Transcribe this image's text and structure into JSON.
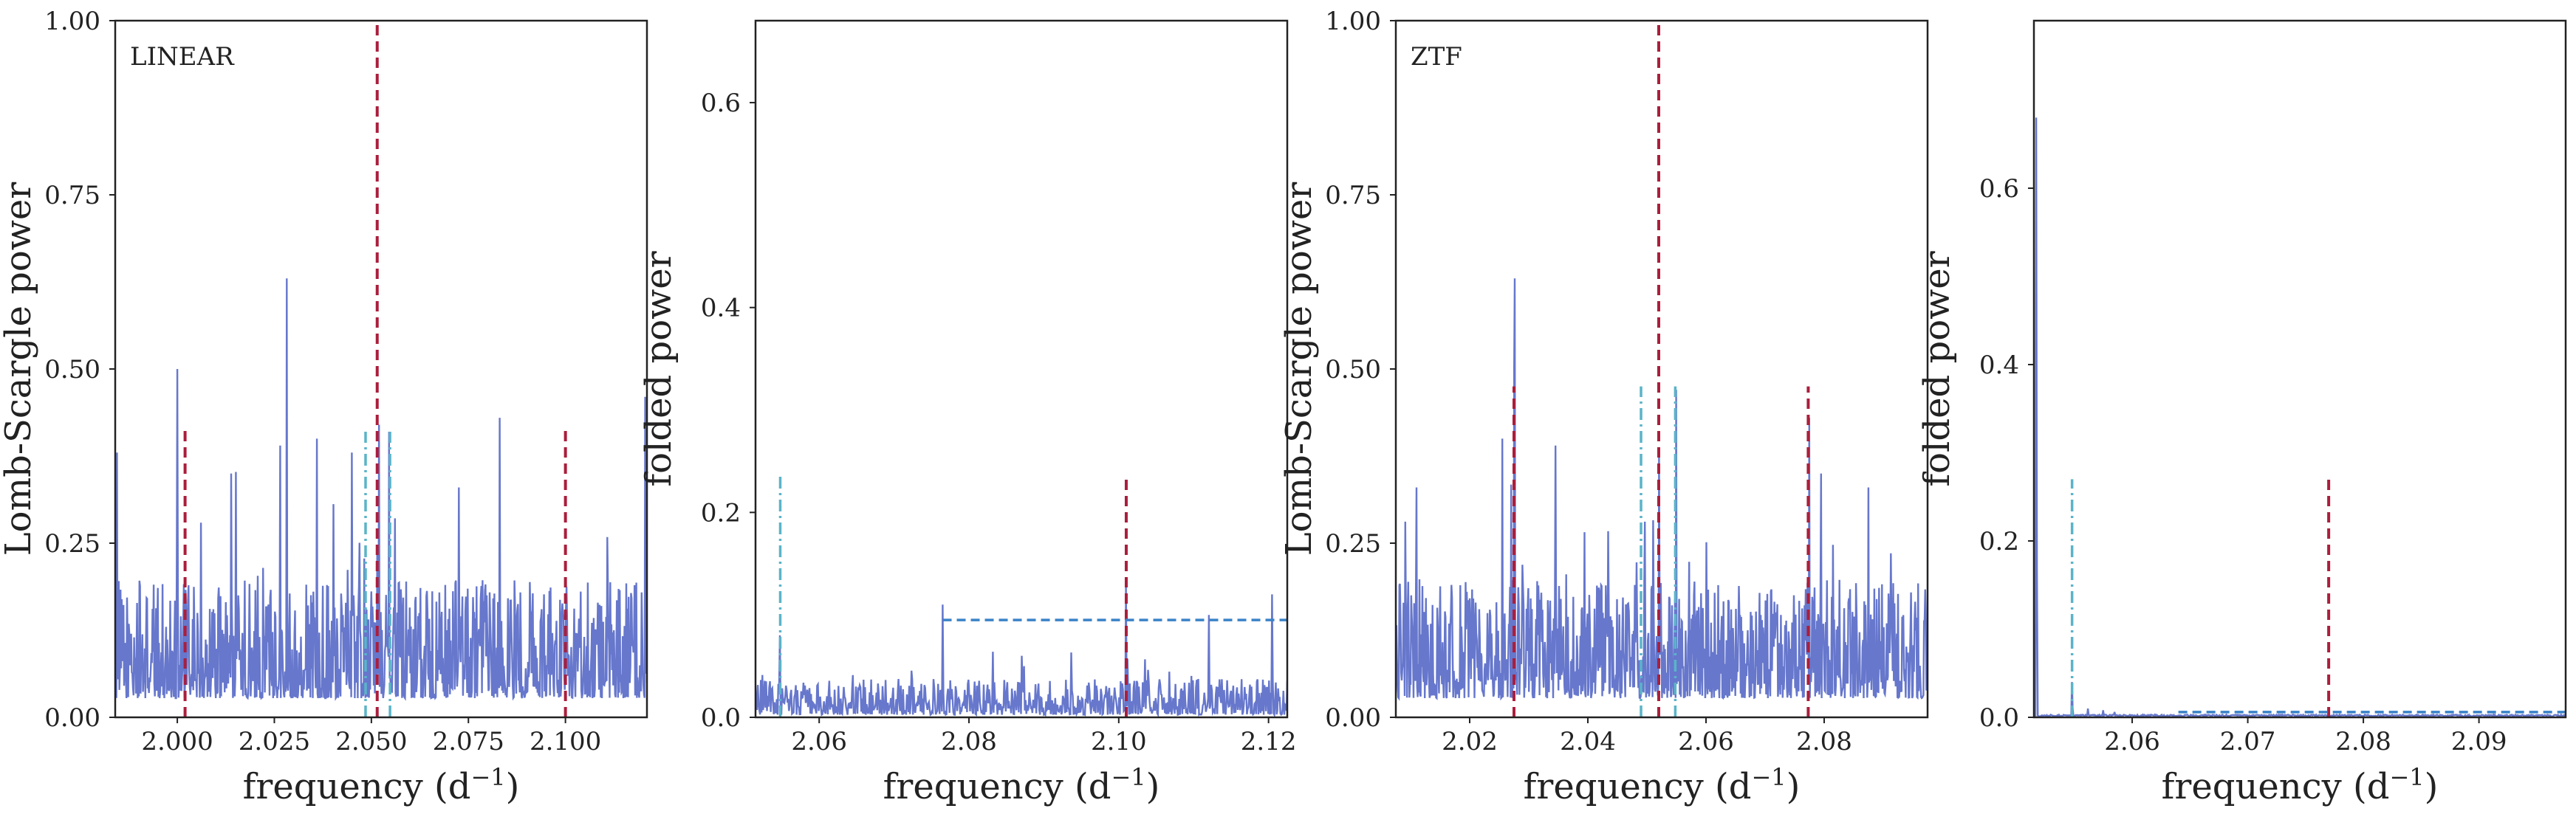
{
  "colors": {
    "periodogram": "#6677cc",
    "true_frequency": "#aa1e3c",
    "aliases": "#5ab4c8",
    "threshold": "#3a82c8",
    "frame": "#222222"
  },
  "chart_data": [
    {
      "type": "line",
      "panel_label": "LINEAR",
      "xlabel": "frequency (d$^{-1}$)",
      "xlabel_text": "frequency (d",
      "xlabel_sup": "−1",
      "xlabel_close": ")",
      "ylabel": "Lomb-Scargle power",
      "xlim": [
        1.984,
        2.121
      ],
      "ylim": [
        0.0,
        1.0
      ],
      "xticks": [
        2.0,
        2.025,
        2.05,
        2.075,
        2.1
      ],
      "xtick_labels": [
        "2.000",
        "2.025",
        "2.050",
        "2.075",
        "2.100"
      ],
      "yticks": [
        0.0,
        0.25,
        0.5,
        0.75,
        1.0
      ],
      "ytick_labels": [
        "0.00",
        "0.25",
        "0.50",
        "0.75",
        "1.00"
      ],
      "series": {
        "pattern": "noise",
        "x_start": 1.984,
        "x_end": 2.121,
        "points": 900,
        "base": 0.11,
        "amplitude": 0.17,
        "peaks": [
          {
            "x": 1.9845,
            "y": 0.38
          },
          {
            "x": 2.0,
            "y": 0.5
          },
          {
            "x": 2.0138,
            "y": 0.35
          },
          {
            "x": 2.0265,
            "y": 0.39
          },
          {
            "x": 2.0282,
            "y": 0.63
          },
          {
            "x": 2.036,
            "y": 0.4
          },
          {
            "x": 2.045,
            "y": 0.38
          },
          {
            "x": 2.052,
            "y": 0.42
          },
          {
            "x": 2.0545,
            "y": 0.41
          },
          {
            "x": 2.083,
            "y": 0.43
          },
          {
            "x": 2.0725,
            "y": 0.33
          },
          {
            "x": 2.1205,
            "y": 0.46
          }
        ]
      },
      "vlines": [
        {
          "x": 2.0515,
          "y0": 0.0,
          "y1": 1.0,
          "style": "true_frequency"
        },
        {
          "x": 2.002,
          "y0": 0.0,
          "y1": 0.415,
          "style": "true_frequency"
        },
        {
          "x": 2.1,
          "y0": 0.0,
          "y1": 0.415,
          "style": "true_frequency"
        },
        {
          "x": 2.0485,
          "y0": 0.0,
          "y1": 0.41,
          "style": "aliases"
        },
        {
          "x": 2.0548,
          "y0": 0.0,
          "y1": 0.41,
          "style": "aliases"
        }
      ],
      "hlines": []
    },
    {
      "type": "line",
      "panel_label": "",
      "xlabel": "frequency (d$^{-1}$)",
      "xlabel_text": "frequency (d",
      "xlabel_sup": "−1",
      "xlabel_close": ")",
      "ylabel": "folded power",
      "xlim": [
        2.0515,
        2.1225
      ],
      "ylim": [
        0.0,
        0.68
      ],
      "xticks": [
        2.06,
        2.08,
        2.1,
        2.12
      ],
      "xtick_labels": [
        "2.06",
        "2.08",
        "2.10",
        "2.12"
      ],
      "yticks": [
        0.0,
        0.2,
        0.4,
        0.6
      ],
      "ytick_labels": [
        "0.0",
        "0.2",
        "0.4",
        "0.6"
      ],
      "series": {
        "pattern": "noise",
        "x_start": 2.0515,
        "x_end": 2.1225,
        "points": 700,
        "base": 0.01,
        "amplitude": 0.035,
        "peaks": [
          {
            "x": 2.0548,
            "y": 0.08
          },
          {
            "x": 2.0765,
            "y": 0.11
          },
          {
            "x": 2.101,
            "y": 0.13
          },
          {
            "x": 2.112,
            "y": 0.1
          },
          {
            "x": 2.1205,
            "y": 0.12
          },
          {
            "x": 2.087,
            "y": 0.06
          }
        ]
      },
      "vlines": [
        {
          "x": 2.0548,
          "y0": 0.0,
          "y1": 0.235,
          "style": "aliases"
        },
        {
          "x": 2.101,
          "y0": 0.0,
          "y1": 0.235,
          "style": "true_frequency"
        }
      ],
      "hlines": [
        {
          "y": 0.095,
          "x0": 2.0765,
          "x1": 2.1225,
          "style": "threshold"
        }
      ]
    },
    {
      "type": "line",
      "panel_label": "ZTF",
      "xlabel": "frequency (d$^{-1}$)",
      "xlabel_text": "frequency (d",
      "xlabel_sup": "−1",
      "xlabel_close": ")",
      "ylabel": "Lomb-Scargle power",
      "xlim": [
        2.0075,
        2.0975
      ],
      "ylim": [
        0.0,
        1.0
      ],
      "xticks": [
        2.02,
        2.04,
        2.06,
        2.08
      ],
      "xtick_labels": [
        "2.02",
        "2.04",
        "2.06",
        "2.08"
      ],
      "yticks": [
        0.0,
        0.25,
        0.5,
        0.75,
        1.0
      ],
      "ytick_labels": [
        "0.00",
        "0.25",
        "0.50",
        "0.75",
        "1.00"
      ],
      "series": {
        "pattern": "noise",
        "x_start": 2.0075,
        "x_end": 2.0975,
        "points": 900,
        "base": 0.11,
        "amplitude": 0.17,
        "peaks": [
          {
            "x": 2.0276,
            "y": 0.63
          },
          {
            "x": 2.0255,
            "y": 0.4
          },
          {
            "x": 2.0275,
            "y": 0.5
          },
          {
            "x": 2.0345,
            "y": 0.39
          },
          {
            "x": 2.052,
            "y": 0.38
          },
          {
            "x": 2.055,
            "y": 0.47
          },
          {
            "x": 2.0775,
            "y": 0.43
          },
          {
            "x": 2.0795,
            "y": 0.35
          },
          {
            "x": 2.0875,
            "y": 0.33
          },
          {
            "x": 2.011,
            "y": 0.33
          }
        ]
      },
      "vlines": [
        {
          "x": 2.052,
          "y0": 0.0,
          "y1": 1.0,
          "style": "true_frequency"
        },
        {
          "x": 2.0275,
          "y0": 0.0,
          "y1": 0.475,
          "style": "true_frequency"
        },
        {
          "x": 2.0773,
          "y0": 0.0,
          "y1": 0.475,
          "style": "true_frequency"
        },
        {
          "x": 2.049,
          "y0": 0.0,
          "y1": 0.475,
          "style": "aliases"
        },
        {
          "x": 2.0548,
          "y0": 0.0,
          "y1": 0.475,
          "style": "aliases"
        }
      ],
      "hlines": []
    },
    {
      "type": "line",
      "panel_label": "",
      "xlabel": "frequency (d$^{-1}$)",
      "xlabel_text": "frequency (d",
      "xlabel_sup": "−1",
      "xlabel_close": ")",
      "ylabel": "folded power",
      "xlim": [
        2.0515,
        2.0975
      ],
      "ylim": [
        0.0,
        0.79
      ],
      "xticks": [
        2.06,
        2.07,
        2.08,
        2.09
      ],
      "xtick_labels": [
        "2.06",
        "2.07",
        "2.08",
        "2.09"
      ],
      "yticks": [
        0.0,
        0.2,
        0.4,
        0.6
      ],
      "ytick_labels": [
        "0.0",
        "0.2",
        "0.4",
        "0.6"
      ],
      "series": {
        "pattern": "decay",
        "x_start": 2.0515,
        "x_end": 2.0975,
        "points": 700,
        "peaks": [
          {
            "x": 2.0517,
            "y": 0.68
          },
          {
            "x": 2.0548,
            "y": 0.04
          },
          {
            "x": 2.0562,
            "y": 0.01
          },
          {
            "x": 2.0575,
            "y": 0.008
          },
          {
            "x": 2.0585,
            "y": 0.006
          }
        ]
      },
      "vlines": [
        {
          "x": 2.0548,
          "y0": 0.0,
          "y1": 0.27,
          "style": "aliases"
        },
        {
          "x": 2.077,
          "y0": 0.0,
          "y1": 0.27,
          "style": "true_frequency"
        }
      ],
      "hlines": [
        {
          "y": 0.006,
          "x0": 2.064,
          "x1": 2.0975,
          "style": "threshold"
        }
      ]
    }
  ]
}
